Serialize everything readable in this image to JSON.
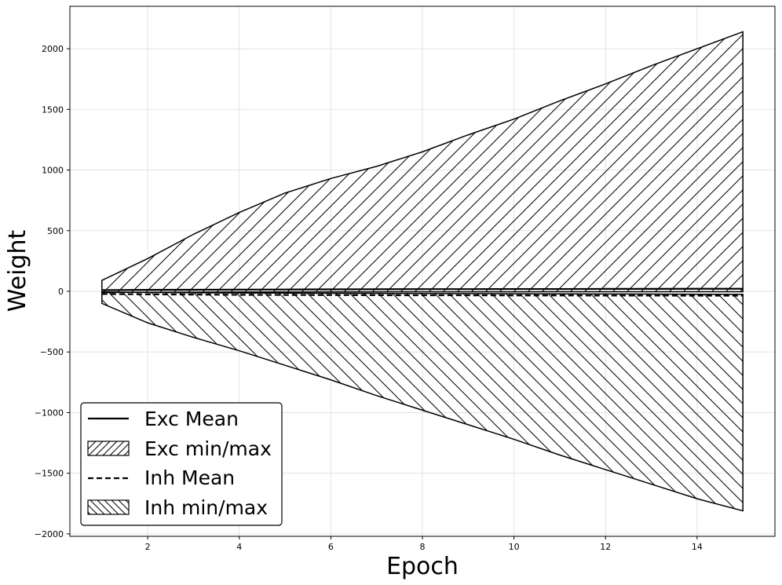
{
  "chart_data": {
    "type": "area",
    "title": "",
    "xlabel": "Epoch",
    "ylabel": "Weight",
    "xlim": [
      0.3,
      15.7
    ],
    "ylim": [
      -2020,
      2350
    ],
    "xticks": [
      2,
      4,
      6,
      8,
      10,
      12,
      14
    ],
    "yticks": [
      -2000,
      -1500,
      -1000,
      -500,
      0,
      500,
      1000,
      1500,
      2000
    ],
    "xtick_labels": [
      "2",
      "4",
      "6",
      "8",
      "10",
      "12",
      "14"
    ],
    "ytick_labels": [
      "−2000",
      "−1500",
      "−1000",
      "−500",
      "0",
      "500",
      "1000",
      "1500",
      "2000"
    ],
    "grid": true,
    "legend_position": "lower-left",
    "x": [
      1,
      2,
      3,
      4,
      5,
      6,
      7,
      8,
      9,
      10,
      11,
      12,
      13,
      14,
      15
    ],
    "series": [
      {
        "name": "Exc Mean",
        "style": "solid",
        "color": "#000000",
        "values": [
          10,
          12,
          13,
          14,
          15,
          16,
          17,
          18,
          18,
          19,
          19,
          20,
          20,
          21,
          21
        ]
      },
      {
        "name": "Exc min/max",
        "style": "hatch-forward",
        "color": "#000000",
        "min": [
          -10,
          -8,
          -7,
          -6,
          -6,
          -5,
          -5,
          -4,
          -4,
          -4,
          -3,
          -3,
          -3,
          -3,
          -3
        ],
        "max": [
          90,
          270,
          470,
          650,
          810,
          930,
          1030,
          1150,
          1290,
          1420,
          1570,
          1710,
          1860,
          2000,
          2140
        ]
      },
      {
        "name": "Inh Mean",
        "style": "dashed",
        "color": "#000000",
        "values": [
          -22,
          -25,
          -27,
          -29,
          -30,
          -31,
          -32,
          -33,
          -33,
          -34,
          -34,
          -35,
          -35,
          -36,
          -36
        ]
      },
      {
        "name": "Inh min/max",
        "style": "hatch-backward",
        "color": "#000000",
        "min": [
          -100,
          -260,
          -380,
          -490,
          -610,
          -730,
          -860,
          -980,
          -1100,
          -1220,
          -1350,
          -1470,
          -1590,
          -1710,
          -1810
        ],
        "max": [
          -5,
          -10,
          -12,
          -14,
          -15,
          -16,
          -17,
          -18,
          -19,
          -20,
          -21,
          -22,
          -23,
          -24,
          -25
        ]
      }
    ],
    "legend": [
      "Exc Mean",
      "Exc min/max",
      "Inh Mean",
      "Inh min/max"
    ]
  }
}
